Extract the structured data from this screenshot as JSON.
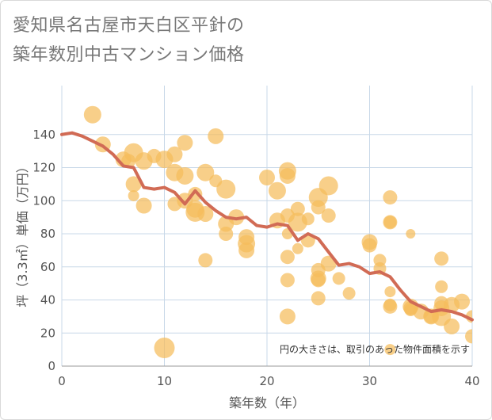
{
  "title_line1": "愛知県名古屋市天白区平針の",
  "title_line2": "築年数別中古マンション価格",
  "chart_data": {
    "type": "scatter",
    "xlabel": "築年数（年）",
    "ylabel": "坪（3.3㎡）単価（万円）",
    "xlim": [
      0,
      40
    ],
    "ylim": [
      0,
      160
    ],
    "xticks": [
      "0",
      "10",
      "20",
      "30",
      "40"
    ],
    "yticks": [
      "0",
      "20",
      "40",
      "60",
      "80",
      "100",
      "120",
      "140"
    ],
    "grid": true,
    "note": "円の大きさは、取引のあった物件面積を示す",
    "colors": {
      "bubble": "#f5bc5c",
      "line": "#d16b55",
      "grid": "#c8d8e8"
    },
    "points": [
      [
        3,
        152,
        11
      ],
      [
        4,
        134,
        10
      ],
      [
        6,
        125,
        10
      ],
      [
        6.5,
        124,
        9
      ],
      [
        7,
        129,
        12
      ],
      [
        7,
        110,
        10
      ],
      [
        7,
        103,
        7
      ],
      [
        8,
        124,
        11
      ],
      [
        8,
        97,
        10
      ],
      [
        9,
        127,
        9
      ],
      [
        10,
        125,
        11
      ],
      [
        10,
        11,
        13
      ],
      [
        11,
        128,
        10
      ],
      [
        11,
        117,
        11
      ],
      [
        11,
        98,
        9
      ],
      [
        12,
        135,
        10
      ],
      [
        12,
        115,
        11
      ],
      [
        12,
        100,
        10
      ],
      [
        13,
        104,
        9
      ],
      [
        13,
        95,
        11
      ],
      [
        13,
        93,
        12
      ],
      [
        14,
        117,
        11
      ],
      [
        14,
        92,
        10
      ],
      [
        14,
        64,
        9
      ],
      [
        15,
        139,
        10
      ],
      [
        15,
        112,
        8
      ],
      [
        16,
        107,
        12
      ],
      [
        16,
        86,
        10
      ],
      [
        16,
        80,
        9
      ],
      [
        17,
        90,
        10
      ],
      [
        18,
        78,
        10
      ],
      [
        18,
        74,
        11
      ],
      [
        18,
        70,
        10
      ],
      [
        20,
        114,
        10
      ],
      [
        21,
        106,
        11
      ],
      [
        21,
        88,
        10
      ],
      [
        22,
        118,
        11
      ],
      [
        22,
        115,
        10
      ],
      [
        22,
        91,
        9
      ],
      [
        22,
        80,
        7
      ],
      [
        22,
        66,
        9
      ],
      [
        22,
        52,
        9
      ],
      [
        22,
        30,
        10
      ],
      [
        23,
        95,
        9
      ],
      [
        23,
        87,
        12
      ],
      [
        23,
        71,
        7
      ],
      [
        24,
        89,
        8
      ],
      [
        24,
        76,
        9
      ],
      [
        25,
        102,
        12
      ],
      [
        25,
        96,
        9
      ],
      [
        25,
        58,
        9
      ],
      [
        25,
        53,
        10
      ],
      [
        25,
        52,
        9
      ],
      [
        25,
        41,
        9
      ],
      [
        26,
        109,
        12
      ],
      [
        26,
        91,
        9
      ],
      [
        26,
        62,
        10
      ],
      [
        27,
        53,
        8
      ],
      [
        28,
        44,
        8
      ],
      [
        30,
        75,
        10
      ],
      [
        30,
        73,
        9
      ],
      [
        31,
        64,
        8
      ],
      [
        31,
        59,
        8
      ],
      [
        32,
        102,
        9
      ],
      [
        32,
        87,
        9
      ],
      [
        32,
        87,
        8
      ],
      [
        32,
        45,
        7
      ],
      [
        32,
        37,
        8
      ],
      [
        32,
        36,
        9
      ],
      [
        32,
        10,
        7
      ],
      [
        34,
        80,
        6
      ],
      [
        34,
        36,
        10
      ],
      [
        34,
        35,
        9
      ],
      [
        34,
        34,
        8
      ],
      [
        35,
        33,
        10
      ],
      [
        36,
        30,
        10
      ],
      [
        36,
        30,
        9
      ],
      [
        37,
        65,
        9
      ],
      [
        37,
        48,
        8
      ],
      [
        37,
        38,
        9
      ],
      [
        37,
        35,
        10
      ],
      [
        37,
        30,
        12
      ],
      [
        38,
        37,
        10
      ],
      [
        38,
        24,
        10
      ],
      [
        39,
        39,
        10
      ],
      [
        40,
        30,
        8
      ],
      [
        40,
        18,
        9
      ]
    ],
    "trend": {
      "x": [
        0,
        1,
        2,
        3,
        4,
        5,
        6,
        7,
        8,
        9,
        10,
        11,
        12,
        13,
        14,
        15,
        16,
        17,
        18,
        19,
        20,
        21,
        22,
        23,
        24,
        25,
        26,
        27,
        28,
        29,
        30,
        31,
        32,
        33,
        34,
        35,
        36,
        37,
        38,
        39,
        40
      ],
      "y": [
        140,
        141,
        139,
        136,
        133,
        128,
        121,
        120,
        108,
        107,
        108,
        105,
        98,
        106,
        99,
        94,
        90,
        89,
        90,
        85,
        84,
        86,
        85,
        76,
        80,
        77,
        69,
        61,
        62,
        60,
        56,
        57,
        54,
        46,
        39,
        36,
        33,
        34,
        33,
        31,
        28
      ]
    }
  }
}
